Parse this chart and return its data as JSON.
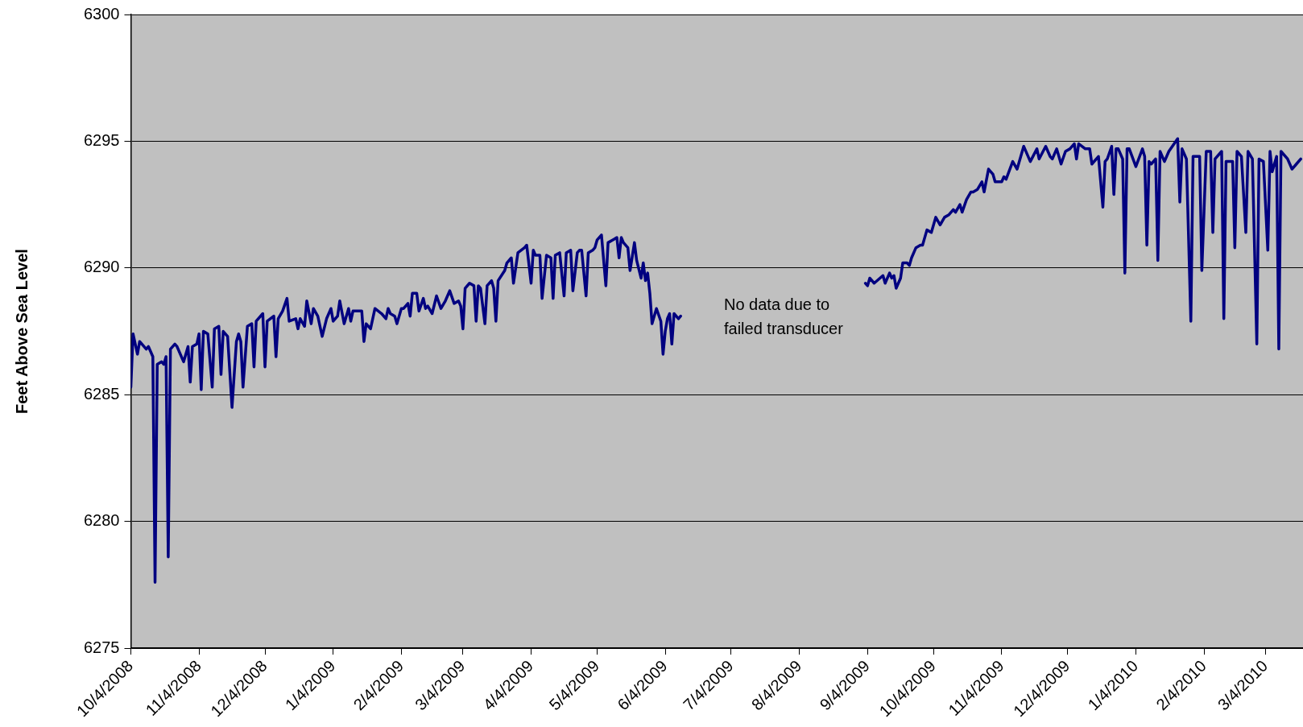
{
  "chart_data": {
    "type": "line",
    "ylabel": "Feet Above Sea Level",
    "marker": "none",
    "line_style": "solid",
    "grid": "y",
    "xlim": [
      "2008-10-04",
      "2010-03-21"
    ],
    "ylim": [
      6275,
      6300
    ],
    "yticks": [
      6275,
      6280,
      6285,
      6290,
      6295,
      6300
    ],
    "xticks": [
      {
        "value": "2008-10-04",
        "label": "10/4/2008"
      },
      {
        "value": "2008-11-04",
        "label": "11/4/2008"
      },
      {
        "value": "2008-12-04",
        "label": "12/4/2008"
      },
      {
        "value": "2009-01-04",
        "label": "1/4/2009"
      },
      {
        "value": "2009-02-04",
        "label": "2/4/2009"
      },
      {
        "value": "2009-03-04",
        "label": "3/4/2009"
      },
      {
        "value": "2009-04-04",
        "label": "4/4/2009"
      },
      {
        "value": "2009-05-04",
        "label": "5/4/2009"
      },
      {
        "value": "2009-06-04",
        "label": "6/4/2009"
      },
      {
        "value": "2009-07-04",
        "label": "7/4/2009"
      },
      {
        "value": "2009-08-04",
        "label": "8/4/2009"
      },
      {
        "value": "2009-09-04",
        "label": "9/4/2009"
      },
      {
        "value": "2009-10-04",
        "label": "10/4/2009"
      },
      {
        "value": "2009-11-04",
        "label": "11/4/2009"
      },
      {
        "value": "2009-12-04",
        "label": "12/4/2009"
      },
      {
        "value": "2010-01-04",
        "label": "1/4/2010"
      },
      {
        "value": "2010-02-04",
        "label": "2/4/2010"
      },
      {
        "value": "2010-03-04",
        "label": "3/4/2010"
      }
    ],
    "annotations": [
      "No data due to failed transducer"
    ],
    "x": [
      "2008-10-04",
      "2008-10-05",
      "2008-10-07",
      "2008-10-08",
      "2008-10-11",
      "2008-10-12",
      "2008-10-14",
      "2008-10-15",
      "2008-10-16",
      "2008-10-18",
      "2008-10-19",
      "2008-10-20",
      "2008-10-21",
      "2008-10-22",
      "2008-10-24",
      "2008-10-25",
      "2008-10-28",
      "2008-10-30",
      "2008-10-31",
      "2008-11-01",
      "2008-11-03",
      "2008-11-04",
      "2008-11-05",
      "2008-11-06",
      "2008-11-08",
      "2008-11-10",
      "2008-11-11",
      "2008-11-13",
      "2008-11-14",
      "2008-11-15",
      "2008-11-17",
      "2008-11-19",
      "2008-11-21",
      "2008-11-22",
      "2008-11-23",
      "2008-11-24",
      "2008-11-26",
      "2008-11-28",
      "2008-11-29",
      "2008-11-30",
      "2008-12-03",
      "2008-12-04",
      "2008-12-05",
      "2008-12-08",
      "2008-12-09",
      "2008-12-10",
      "2008-12-12",
      "2008-12-14",
      "2008-12-15",
      "2008-12-18",
      "2008-12-19",
      "2008-12-20",
      "2008-12-22",
      "2008-12-23",
      "2008-12-25",
      "2008-12-26",
      "2008-12-28",
      "2008-12-30",
      "2009-01-01",
      "2009-01-03",
      "2009-01-04",
      "2009-01-06",
      "2009-01-07",
      "2009-01-09",
      "2009-01-11",
      "2009-01-12",
      "2009-01-13",
      "2009-01-15",
      "2009-01-17",
      "2009-01-18",
      "2009-01-19",
      "2009-01-21",
      "2009-01-23",
      "2009-01-26",
      "2009-01-28",
      "2009-01-29",
      "2009-01-30",
      "2009-02-01",
      "2009-02-02",
      "2009-02-04",
      "2009-02-05",
      "2009-02-07",
      "2009-02-08",
      "2009-02-09",
      "2009-02-11",
      "2009-02-12",
      "2009-02-14",
      "2009-02-15",
      "2009-02-16",
      "2009-02-18",
      "2009-02-20",
      "2009-02-22",
      "2009-02-24",
      "2009-02-26",
      "2009-02-28",
      "2009-03-02",
      "2009-03-03",
      "2009-03-04",
      "2009-03-05",
      "2009-03-07",
      "2009-03-09",
      "2009-03-10",
      "2009-03-11",
      "2009-03-12",
      "2009-03-14",
      "2009-03-15",
      "2009-03-17",
      "2009-03-18",
      "2009-03-19",
      "2009-03-20",
      "2009-03-23",
      "2009-03-24",
      "2009-03-26",
      "2009-03-27",
      "2009-03-29",
      "2009-04-01",
      "2009-04-02",
      "2009-04-04",
      "2009-04-05",
      "2009-04-06",
      "2009-04-08",
      "2009-04-09",
      "2009-04-11",
      "2009-04-13",
      "2009-04-14",
      "2009-04-15",
      "2009-04-17",
      "2009-04-19",
      "2009-04-20",
      "2009-04-22",
      "2009-04-23",
      "2009-04-25",
      "2009-04-26",
      "2009-04-27",
      "2009-04-29",
      "2009-04-30",
      "2009-05-02",
      "2009-05-03",
      "2009-05-04",
      "2009-05-06",
      "2009-05-08",
      "2009-05-09",
      "2009-05-11",
      "2009-05-13",
      "2009-05-14",
      "2009-05-15",
      "2009-05-16",
      "2009-05-18",
      "2009-05-19",
      "2009-05-21",
      "2009-05-22",
      "2009-05-24",
      "2009-05-25",
      "2009-05-26",
      "2009-05-27",
      "2009-05-28",
      "2009-05-29",
      "2009-05-31",
      "2009-06-02",
      "2009-06-03",
      "2009-06-04",
      "2009-06-05",
      "2009-06-06",
      "2009-06-07",
      "2009-06-08",
      "2009-06-10",
      "2009-06-11",
      "2009-07-15",
      "2009-09-03",
      "2009-09-04",
      "2009-09-05",
      "2009-09-07",
      "2009-09-11",
      "2009-09-12",
      "2009-09-14",
      "2009-09-15",
      "2009-09-16",
      "2009-09-17",
      "2009-09-19",
      "2009-09-20",
      "2009-09-22",
      "2009-09-23",
      "2009-09-24",
      "2009-09-26",
      "2009-09-28",
      "2009-09-29",
      "2009-10-01",
      "2009-10-03",
      "2009-10-05",
      "2009-10-07",
      "2009-10-09",
      "2009-10-11",
      "2009-10-13",
      "2009-10-14",
      "2009-10-16",
      "2009-10-17",
      "2009-10-19",
      "2009-10-21",
      "2009-10-22",
      "2009-10-24",
      "2009-10-26",
      "2009-10-27",
      "2009-10-29",
      "2009-10-31",
      "2009-11-01",
      "2009-11-04",
      "2009-11-05",
      "2009-11-06",
      "2009-11-09",
      "2009-11-11",
      "2009-11-14",
      "2009-11-17",
      "2009-11-20",
      "2009-11-21",
      "2009-11-24",
      "2009-11-26",
      "2009-11-27",
      "2009-11-29",
      "2009-12-01",
      "2009-12-03",
      "2009-12-05",
      "2009-12-07",
      "2009-12-08",
      "2009-12-09",
      "2009-12-12",
      "2009-12-14",
      "2009-12-15",
      "2009-12-18",
      "2009-12-20",
      "2009-12-21",
      "2009-12-22",
      "2009-12-24",
      "2009-12-25",
      "2009-12-26",
      "2009-12-27",
      "2009-12-29",
      "2009-12-30",
      "2009-12-31",
      "2010-01-01",
      "2010-01-04",
      "2010-01-07",
      "2010-01-08",
      "2010-01-09",
      "2010-01-10",
      "2010-01-11",
      "2010-01-13",
      "2010-01-14",
      "2010-01-15",
      "2010-01-17",
      "2010-01-19",
      "2010-01-23",
      "2010-01-24",
      "2010-01-25",
      "2010-01-27",
      "2010-01-29",
      "2010-01-30",
      "2010-02-02",
      "2010-02-03",
      "2010-02-05",
      "2010-02-07",
      "2010-02-08",
      "2010-02-09",
      "2010-02-12",
      "2010-02-13",
      "2010-02-14",
      "2010-02-17",
      "2010-02-18",
      "2010-02-19",
      "2010-02-21",
      "2010-02-23",
      "2010-02-24",
      "2010-02-26",
      "2010-02-28",
      "2010-03-01",
      "2010-03-03",
      "2010-03-05",
      "2010-03-06",
      "2010-03-07",
      "2010-03-09",
      "2010-03-10",
      "2010-03-11",
      "2010-03-14",
      "2010-03-16",
      "2010-03-18",
      "2010-03-20"
    ],
    "series": [
      {
        "color": "#000080",
        "values": [
          6285.3,
          6287.4,
          6286.6,
          6287.1,
          6286.8,
          6286.9,
          6286.5,
          6277.6,
          6286.2,
          6286.3,
          6286.2,
          6286.5,
          6278.6,
          6286.8,
          6287.0,
          6286.9,
          6286.3,
          6286.9,
          6285.5,
          6286.9,
          6287.0,
          6287.4,
          6285.2,
          6287.5,
          6287.4,
          6285.3,
          6287.6,
          6287.7,
          6285.8,
          6287.5,
          6287.3,
          6284.5,
          6287.1,
          6287.4,
          6287.1,
          6285.3,
          6287.7,
          6287.8,
          6286.1,
          6287.9,
          6288.2,
          6286.1,
          6287.9,
          6288.1,
          6286.5,
          6288.0,
          6288.3,
          6288.8,
          6287.9,
          6288.0,
          6287.6,
          6288.0,
          6287.7,
          6288.7,
          6287.8,
          6288.4,
          6288.1,
          6287.3,
          6288.0,
          6288.4,
          6287.9,
          6288.1,
          6288.7,
          6287.8,
          6288.4,
          6287.9,
          6288.3,
          6288.3,
          6288.3,
          6287.1,
          6287.8,
          6287.6,
          6288.4,
          6288.2,
          6288.0,
          6288.4,
          6288.2,
          6288.1,
          6287.8,
          6288.4,
          6288.4,
          6288.6,
          6288.1,
          6289.0,
          6289.0,
          6288.3,
          6288.8,
          6288.4,
          6288.5,
          6288.2,
          6288.9,
          6288.4,
          6288.7,
          6289.1,
          6288.6,
          6288.7,
          6288.5,
          6287.6,
          6289.2,
          6289.4,
          6289.3,
          6287.9,
          6289.3,
          6289.2,
          6287.8,
          6289.3,
          6289.5,
          6289.2,
          6287.9,
          6289.5,
          6289.9,
          6290.2,
          6290.4,
          6289.4,
          6290.6,
          6290.8,
          6290.9,
          6289.4,
          6290.7,
          6290.5,
          6290.5,
          6288.8,
          6290.5,
          6290.4,
          6288.8,
          6290.5,
          6290.6,
          6288.9,
          6290.6,
          6290.7,
          6289.1,
          6290.6,
          6290.7,
          6290.7,
          6288.9,
          6290.6,
          6290.7,
          6290.8,
          6291.1,
          6291.3,
          6289.3,
          6291.0,
          6291.1,
          6291.2,
          6290.4,
          6291.2,
          6291.0,
          6290.8,
          6289.9,
          6291.0,
          6290.3,
          6289.6,
          6290.2,
          6289.5,
          6289.8,
          6289.0,
          6287.8,
          6288.4,
          6287.9,
          6286.6,
          6287.5,
          6288.0,
          6288.2,
          6287.0,
          6288.2,
          6288.0,
          6288.1,
          null,
          6289.4,
          6289.3,
          6289.6,
          6289.4,
          6289.7,
          6289.4,
          6289.8,
          6289.6,
          6289.7,
          6289.2,
          6289.6,
          6290.2,
          6290.2,
          6290.1,
          6290.4,
          6290.8,
          6290.9,
          6290.9,
          6291.5,
          6291.4,
          6292.0,
          6291.7,
          6292.0,
          6292.1,
          6292.3,
          6292.2,
          6292.5,
          6292.2,
          6292.7,
          6293.0,
          6293.0,
          6293.1,
          6293.4,
          6293.0,
          6293.9,
          6293.7,
          6293.4,
          6293.4,
          6293.6,
          6293.5,
          6294.2,
          6293.9,
          6294.8,
          6294.2,
          6294.7,
          6294.3,
          6294.8,
          6294.4,
          6294.3,
          6294.7,
          6294.1,
          6294.6,
          6294.7,
          6294.9,
          6294.3,
          6294.9,
          6294.7,
          6294.7,
          6294.1,
          6294.4,
          6292.4,
          6294.2,
          6294.3,
          6294.8,
          6292.9,
          6294.7,
          6294.7,
          6294.3,
          6289.8,
          6294.7,
          6294.7,
          6294.0,
          6294.7,
          6294.4,
          6290.9,
          6294.2,
          6294.1,
          6294.3,
          6290.3,
          6294.6,
          6294.2,
          6294.6,
          6295.1,
          6292.6,
          6294.7,
          6294.3,
          6287.9,
          6294.4,
          6294.4,
          6289.9,
          6294.6,
          6294.6,
          6291.4,
          6294.3,
          6294.6,
          6288.0,
          6294.2,
          6294.2,
          6290.8,
          6294.6,
          6294.4,
          6291.4,
          6294.6,
          6294.3,
          6287.0,
          6294.3,
          6294.2,
          6290.7,
          6294.6,
          6293.8,
          6294.4,
          6286.8,
          6294.6,
          6294.3,
          6293.9,
          6294.1,
          6294.3
        ]
      }
    ]
  }
}
